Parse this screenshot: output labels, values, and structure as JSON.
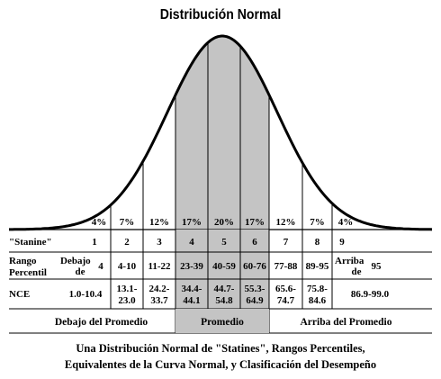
{
  "title": "Distribución Normal",
  "percent_row": [
    "4%",
    "7%",
    "12%",
    "17%",
    "20%",
    "17%",
    "12%",
    "7%",
    "4%"
  ],
  "stanine": {
    "label": "\"Stanine\"",
    "values": [
      "1",
      "2",
      "3",
      "4",
      "5",
      "6",
      "7",
      "8",
      "9"
    ]
  },
  "rango": {
    "label_line1": "Rango",
    "label_line2": "Percentil",
    "first_line1": "Debajo",
    "first_line2": "de",
    "first_value": "4",
    "middle": [
      "4-10",
      "11-22",
      "23-39",
      "40-59",
      "60-76",
      "77-88",
      "89-95"
    ],
    "last_line1": "Arriba",
    "last_line2": "de",
    "last_value": "95"
  },
  "nce": {
    "label": "NCE",
    "first": "1.0-10.4",
    "middle": [
      [
        "13.1-",
        "23.0"
      ],
      [
        "24.2-",
        "33.7"
      ],
      [
        "34.4-",
        "44.1"
      ],
      [
        "44.7-",
        "54.8"
      ],
      [
        "55.3-",
        "64.9"
      ],
      [
        "65.6-",
        "74.7"
      ],
      [
        "75.8-",
        "84.6"
      ]
    ],
    "last": "86.9-99.0"
  },
  "classification": {
    "below": "Debajo del Promedio",
    "average": "Promedio",
    "above": "Arriba del Promedio"
  },
  "caption": {
    "line1": "Una Distribución Normal de \"Statines\", Rangos Percentiles,",
    "line2": "Equivalentes de la Curva Normal, y Clasificación del Desempeño"
  },
  "colors": {
    "shade": "#c4c4c4",
    "ink": "#000000"
  }
}
